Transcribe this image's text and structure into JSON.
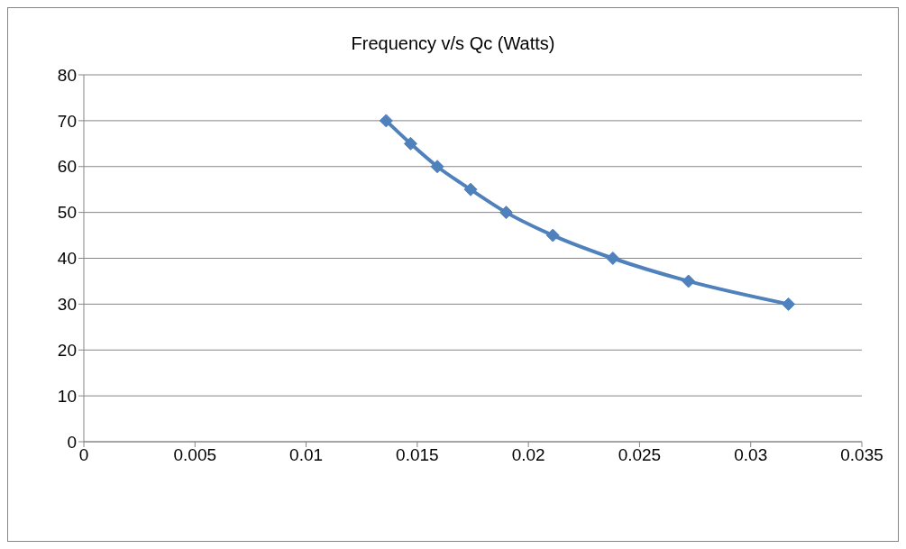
{
  "chart_data": {
    "type": "line",
    "title": "Frequency v/s Qc (Watts)",
    "x": [
      0.0136,
      0.0147,
      0.0159,
      0.0174,
      0.019,
      0.0211,
      0.0238,
      0.0272,
      0.0317
    ],
    "series": [
      {
        "color": "#4f81bd",
        "values": [
          70,
          65,
          60,
          55,
          50,
          45,
          40,
          35,
          30
        ]
      }
    ],
    "xlim": [
      0,
      0.035
    ],
    "xticks": [
      0,
      0.005,
      0.01,
      0.015,
      0.02,
      0.025,
      0.03,
      0.035
    ],
    "ylim": [
      0,
      80
    ],
    "yticks": [
      0,
      10,
      20,
      30,
      40,
      50,
      60,
      70,
      80
    ],
    "grid": "y",
    "legend": false,
    "marker": "diamond",
    "line_style": "solid"
  }
}
